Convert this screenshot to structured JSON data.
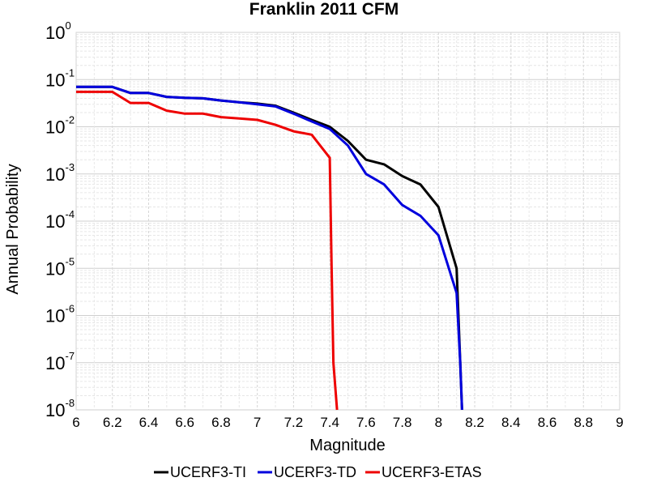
{
  "chart_data": {
    "type": "line",
    "title": "Franklin 2011 CFM",
    "xlabel": "Magnitude",
    "ylabel": "Annual Probability",
    "xlim": [
      6,
      9
    ],
    "ylim": [
      1e-08,
      1
    ],
    "yscale": "log",
    "grid": true,
    "legend_position": "bottom",
    "x_ticks": [
      "6",
      "6.2",
      "6.4",
      "6.6",
      "6.8",
      "7",
      "7.2",
      "7.4",
      "7.6",
      "7.8",
      "8",
      "8.2",
      "8.4",
      "8.6",
      "8.8",
      "9"
    ],
    "y_ticks": [
      {
        "base": "10",
        "exp": "-8"
      },
      {
        "base": "10",
        "exp": "-7"
      },
      {
        "base": "10",
        "exp": "-6"
      },
      {
        "base": "10",
        "exp": "-5"
      },
      {
        "base": "10",
        "exp": "-4"
      },
      {
        "base": "10",
        "exp": "-3"
      },
      {
        "base": "10",
        "exp": "-2"
      },
      {
        "base": "10",
        "exp": "-1"
      },
      {
        "base": "10",
        "exp": "0"
      }
    ],
    "series": [
      {
        "name": "UCERF3-TI",
        "color": "#000000",
        "x": [
          6.0,
          6.2,
          6.3,
          6.4,
          6.5,
          6.6,
          6.7,
          6.8,
          6.9,
          7.0,
          7.1,
          7.2,
          7.3,
          7.4,
          7.5,
          7.6,
          7.7,
          7.8,
          7.9,
          8.0,
          8.1,
          8.12,
          8.13
        ],
        "y": [
          0.07,
          0.07,
          0.052,
          0.052,
          0.043,
          0.041,
          0.04,
          0.036,
          0.033,
          0.031,
          0.028,
          0.02,
          0.014,
          0.01,
          0.005,
          0.002,
          0.0016,
          0.0009,
          0.0006,
          0.0002,
          1e-05,
          1e-07,
          1e-08
        ]
      },
      {
        "name": "UCERF3-TD",
        "color": "#0000dd",
        "x": [
          6.0,
          6.2,
          6.3,
          6.4,
          6.5,
          6.6,
          6.7,
          6.8,
          6.9,
          7.0,
          7.1,
          7.2,
          7.3,
          7.4,
          7.5,
          7.6,
          7.7,
          7.8,
          7.9,
          8.0,
          8.1,
          8.12,
          8.13
        ],
        "y": [
          0.07,
          0.07,
          0.052,
          0.052,
          0.043,
          0.041,
          0.04,
          0.036,
          0.033,
          0.03,
          0.027,
          0.019,
          0.013,
          0.009,
          0.004,
          0.001,
          0.0006,
          0.00022,
          0.00013,
          5e-05,
          3e-06,
          1e-07,
          1e-08
        ]
      },
      {
        "name": "UCERF3-ETAS",
        "color": "#ee0000",
        "x": [
          6.0,
          6.2,
          6.3,
          6.4,
          6.5,
          6.6,
          6.7,
          6.8,
          6.9,
          7.0,
          7.1,
          7.2,
          7.3,
          7.4,
          7.41,
          7.42,
          7.44
        ],
        "y": [
          0.055,
          0.055,
          0.032,
          0.032,
          0.022,
          0.019,
          0.019,
          0.016,
          0.015,
          0.014,
          0.011,
          0.008,
          0.0068,
          0.0022,
          1e-05,
          1e-07,
          1e-08
        ]
      }
    ]
  }
}
